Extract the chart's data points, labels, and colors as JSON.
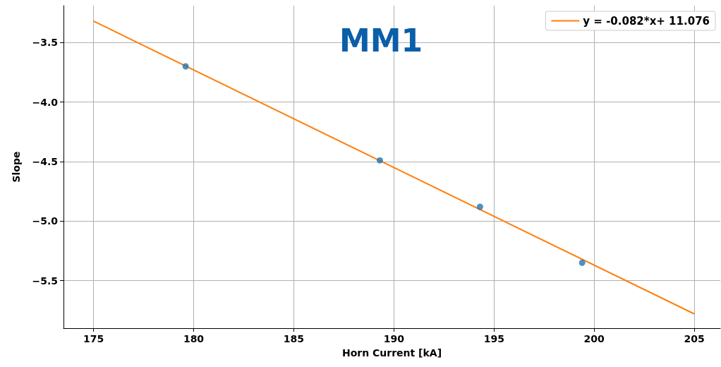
{
  "chart_data": {
    "type": "scatter",
    "title": "MM1",
    "xlabel": "Horn Current [kA]",
    "ylabel": "Slope",
    "xlim": [
      173.5,
      206.3
    ],
    "ylim": [
      -5.9,
      -3.19
    ],
    "xticks": [
      175,
      180,
      185,
      190,
      195,
      200,
      205
    ],
    "yticks": [
      {
        "value": -5.5,
        "label": "−5.5"
      },
      {
        "value": -5.0,
        "label": "−5.0"
      },
      {
        "value": -4.5,
        "label": "−4.5"
      },
      {
        "value": -4.0,
        "label": "−4.0"
      },
      {
        "value": -3.5,
        "label": "−3.5"
      }
    ],
    "grid": true,
    "legend": "top right",
    "series": [
      {
        "type": "scatter",
        "color": "#1f77b4",
        "marker": "circle",
        "x": [
          179.6,
          189.3,
          194.3,
          199.4
        ],
        "values": [
          -3.7,
          -4.49,
          -4.88,
          -5.35
        ]
      },
      {
        "type": "line",
        "name": "y = -0.082*x+ 11.076",
        "color": "#ff7f0e",
        "marker": "none",
        "line_style": "solid",
        "x": [
          175,
          205
        ],
        "values": [
          -3.32,
          -5.78
        ]
      }
    ]
  }
}
